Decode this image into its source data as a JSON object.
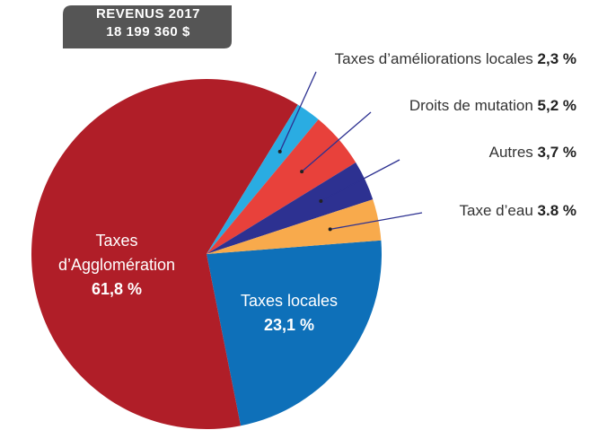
{
  "header": {
    "line1": "REVENUS 2017",
    "line2": "18 199 360 $"
  },
  "chart_data": {
    "type": "pie",
    "categories": [
      "Taxes locales",
      "Taxes d’Agglomération",
      "Taxes d’améliorations locales",
      "Droits de mutation",
      "Autres",
      "Taxe d’eau"
    ],
    "values": [
      23.1,
      61.8,
      2.3,
      5.2,
      3.7,
      3.8
    ],
    "value_labels": [
      "23,1 %",
      "61,8 %",
      "2,3 %",
      "5,2 %",
      "3,7 %",
      "3.8 %"
    ],
    "colors": [
      "#0e70b9",
      "#b01e28",
      "#2aace2",
      "#e8413b",
      "#2d3191",
      "#f8aa4c"
    ]
  }
}
